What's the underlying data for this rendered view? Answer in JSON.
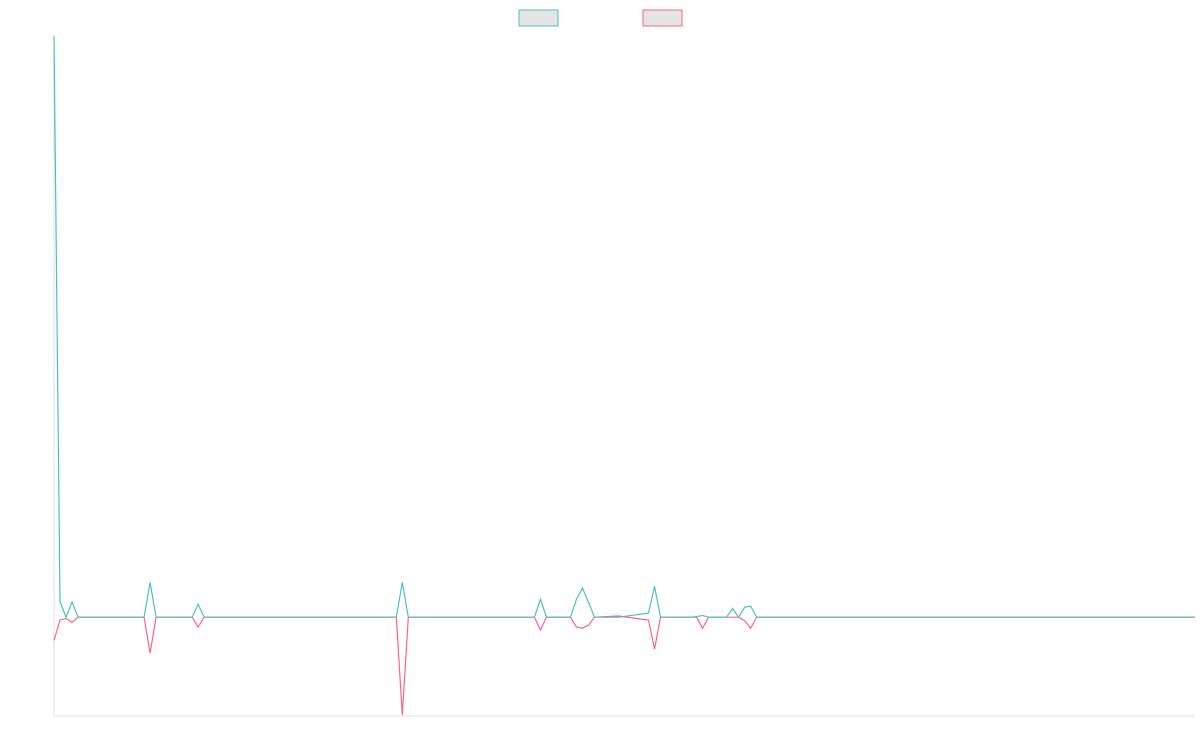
{
  "chart_data": {
    "type": "line",
    "x": [
      0,
      1,
      2,
      3,
      4,
      15,
      16,
      17,
      23,
      24,
      25,
      57,
      58,
      59,
      80,
      81,
      82,
      86,
      87,
      88,
      89,
      90,
      94,
      99,
      100,
      101,
      106,
      107,
      108,
      109,
      112,
      113,
      114,
      115,
      116,
      117,
      190
    ],
    "xlim": [
      0,
      190
    ],
    "ylim": [
      -17,
      100
    ],
    "series": [
      {
        "color": "#4bc0c0",
        "values": [
          100,
          2.7,
          0,
          2.6,
          0,
          0,
          6.0,
          0,
          0,
          2.2,
          0,
          0,
          6.0,
          0,
          0,
          3.1,
          0,
          0,
          3.1,
          5.0,
          2.6,
          0,
          0,
          0.7,
          5.3,
          0,
          0,
          0.1,
          0.3,
          0,
          0,
          1.5,
          0,
          1.7,
          1.9,
          0,
          0
        ]
      },
      {
        "color": "#ff6384",
        "values": [
          -4.0,
          -0.5,
          -0.2,
          -0.9,
          0,
          0,
          -6.2,
          0,
          0,
          -1.7,
          0,
          0,
          -16.8,
          0,
          0,
          -2.2,
          0,
          0,
          -1.7,
          -1.9,
          -1.4,
          0,
          0.2,
          -0.5,
          -5.5,
          0,
          0,
          0,
          -1.9,
          0,
          0,
          0,
          0,
          -0.6,
          -1.9,
          0,
          0
        ]
      }
    ]
  }
}
